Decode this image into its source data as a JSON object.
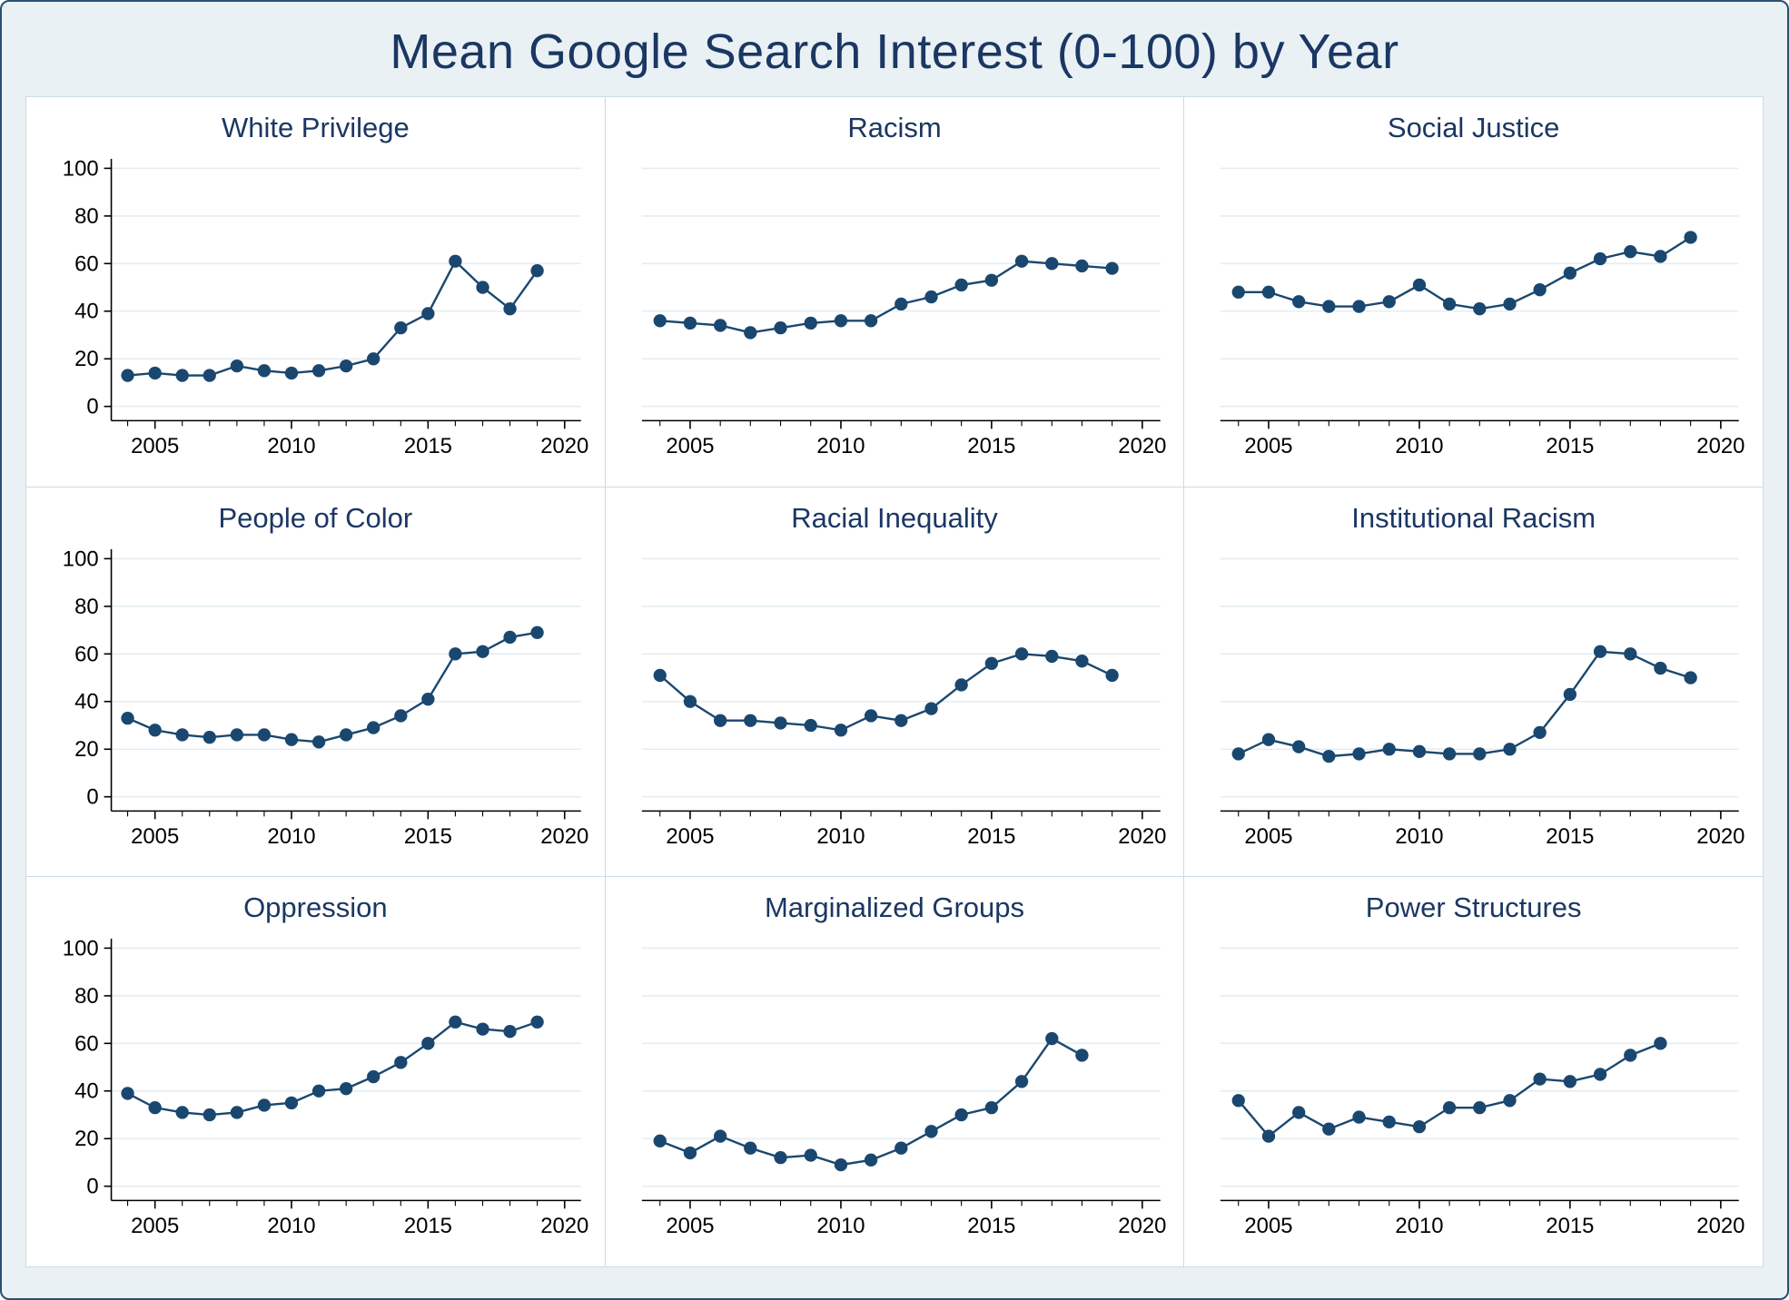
{
  "title": "Mean Google Search Interest (0-100) by Year",
  "colors": {
    "accent": "#1A476F",
    "title_navy": "#1b3763",
    "background": "#e9f1f5",
    "plot_bg": "#ffffff",
    "grid": "#e4edf1",
    "axis": "#000000"
  },
  "axes": {
    "ylim": [
      0,
      100
    ],
    "yticks": [
      0,
      20,
      40,
      60,
      80,
      100
    ],
    "xlim": [
      2003.4,
      2020.6
    ],
    "xticks_minor": [
      2004,
      2005,
      2006,
      2007,
      2008,
      2009,
      2010,
      2011,
      2012,
      2013,
      2014,
      2015,
      2016,
      2017,
      2018,
      2019,
      2020
    ],
    "xtick_labels": [
      2005,
      2010,
      2015,
      2020
    ],
    "grid": true,
    "y_labels_on_left_column_only": true
  },
  "chart_data": [
    {
      "type": "line",
      "title": "White Privilege",
      "x": [
        2004,
        2005,
        2006,
        2007,
        2008,
        2009,
        2010,
        2011,
        2012,
        2013,
        2014,
        2015,
        2016,
        2017,
        2018,
        2019
      ],
      "y": [
        13,
        14,
        13,
        13,
        17,
        15,
        14,
        15,
        17,
        20,
        33,
        39,
        61,
        50,
        41,
        57
      ],
      "ylim": [
        0,
        100
      ]
    },
    {
      "type": "line",
      "title": "Racism",
      "x": [
        2004,
        2005,
        2006,
        2007,
        2008,
        2009,
        2010,
        2011,
        2012,
        2013,
        2014,
        2015,
        2016,
        2017,
        2018,
        2019
      ],
      "y": [
        36,
        35,
        34,
        31,
        33,
        35,
        36,
        36,
        43,
        46,
        51,
        53,
        61,
        60,
        59,
        58
      ],
      "ylim": [
        0,
        100
      ]
    },
    {
      "type": "line",
      "title": "Social Justice",
      "x": [
        2004,
        2005,
        2006,
        2007,
        2008,
        2009,
        2010,
        2011,
        2012,
        2013,
        2014,
        2015,
        2016,
        2017,
        2018,
        2019
      ],
      "y": [
        48,
        48,
        44,
        42,
        42,
        44,
        51,
        43,
        41,
        43,
        49,
        56,
        62,
        65,
        63,
        71
      ],
      "ylim": [
        0,
        100
      ]
    },
    {
      "type": "line",
      "title": "People of Color",
      "x": [
        2004,
        2005,
        2006,
        2007,
        2008,
        2009,
        2010,
        2011,
        2012,
        2013,
        2014,
        2015,
        2016,
        2017,
        2018,
        2019
      ],
      "y": [
        33,
        28,
        26,
        25,
        26,
        26,
        24,
        23,
        26,
        29,
        34,
        41,
        60,
        61,
        67,
        69
      ],
      "ylim": [
        0,
        100
      ]
    },
    {
      "type": "line",
      "title": "Racial Inequality",
      "x": [
        2004,
        2005,
        2006,
        2007,
        2008,
        2009,
        2010,
        2011,
        2012,
        2013,
        2014,
        2015,
        2016,
        2017,
        2018,
        2019
      ],
      "y": [
        51,
        40,
        32,
        32,
        31,
        30,
        28,
        34,
        32,
        37,
        47,
        56,
        60,
        59,
        57,
        51
      ],
      "ylim": [
        0,
        100
      ]
    },
    {
      "type": "line",
      "title": "Institutional Racism",
      "x": [
        2004,
        2005,
        2006,
        2007,
        2008,
        2009,
        2010,
        2011,
        2012,
        2013,
        2014,
        2015,
        2016,
        2017,
        2018,
        2019
      ],
      "y": [
        18,
        24,
        21,
        17,
        18,
        20,
        19,
        18,
        18,
        20,
        27,
        43,
        61,
        60,
        54,
        50
      ],
      "ylim": [
        0,
        100
      ]
    },
    {
      "type": "line",
      "title": "Oppression",
      "x": [
        2004,
        2005,
        2006,
        2007,
        2008,
        2009,
        2010,
        2011,
        2012,
        2013,
        2014,
        2015,
        2016,
        2017,
        2018,
        2019
      ],
      "y": [
        39,
        33,
        31,
        30,
        31,
        34,
        35,
        40,
        41,
        46,
        52,
        60,
        69,
        66,
        65,
        69
      ],
      "ylim": [
        0,
        100
      ]
    },
    {
      "type": "line",
      "title": "Marginalized Groups",
      "x": [
        2004,
        2005,
        2006,
        2007,
        2008,
        2009,
        2010,
        2011,
        2012,
        2013,
        2014,
        2015,
        2016,
        2017,
        2018
      ],
      "y": [
        19,
        14,
        21,
        16,
        12,
        13,
        9,
        11,
        16,
        23,
        30,
        33,
        44,
        62,
        55
      ],
      "ylim": [
        0,
        100
      ]
    },
    {
      "type": "line",
      "title": "Power Structures",
      "x": [
        2004,
        2005,
        2006,
        2007,
        2008,
        2009,
        2010,
        2011,
        2012,
        2013,
        2014,
        2015,
        2016,
        2017,
        2018
      ],
      "y": [
        36,
        21,
        31,
        24,
        29,
        27,
        25,
        33,
        33,
        36,
        45,
        44,
        47,
        55,
        60
      ],
      "ylim": [
        0,
        100
      ]
    }
  ]
}
